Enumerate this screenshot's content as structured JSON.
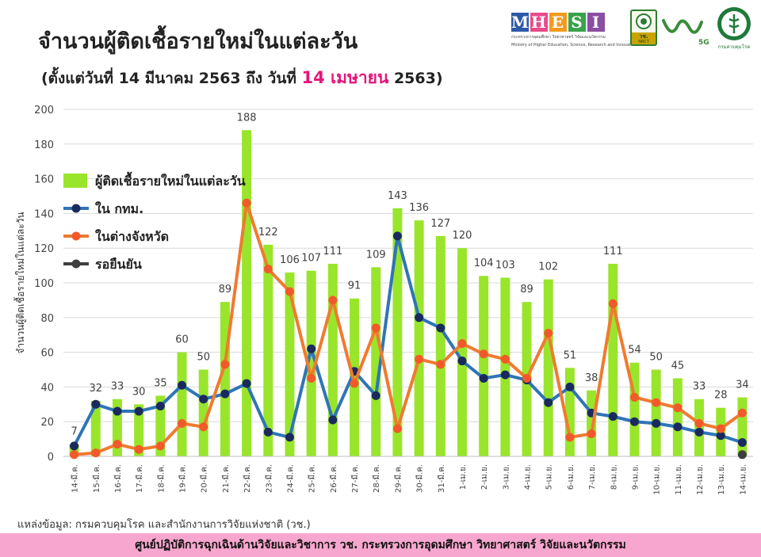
{
  "header": {
    "title": "จำนวนผู้ติดเชื้อรายใหม่ในแต่ละวัน",
    "subtitle_prefix": "(ตั้งแต่วันที่ 14 มีนาคม 2563 ถึง วันที่ ",
    "subtitle_highlight": "14 เมษายน",
    "subtitle_suffix": " 2563)"
  },
  "logos": {
    "mhesi": {
      "letters": [
        "M",
        "H",
        "E",
        "S",
        "I"
      ],
      "letter_colors": [
        "#2d5aa8",
        "#e84b8a",
        "#f29b20",
        "#39a24b",
        "#8a4ea3"
      ],
      "subtext_th": "กระทรวงการอุดมศึกษา วิทยาศาสตร์ วิจัยและนวัตกรรม",
      "subtext_en": "Ministry of Higher Education, Science, Research and Innovation"
    },
    "nrct": {
      "label": "วช.",
      "sublabel": "NRCT"
    },
    "anniversary": {
      "label": "5G"
    },
    "ddc": {
      "label": "กรมควบคุมโรค"
    }
  },
  "chart_data": {
    "type": "bar",
    "ylabel": "จำนวนผู้ติดเชื้อรายใหม่ในแต่ละวัน",
    "ylim": [
      0,
      200
    ],
    "yticks": [
      0,
      20,
      40,
      60,
      80,
      100,
      120,
      140,
      160,
      180,
      200
    ],
    "grid": true,
    "legend_position": "top-left",
    "categories": [
      "14-มี.ค.",
      "15-มี.ค.",
      "16-มี.ค.",
      "17-มี.ค.",
      "18-มี.ค.",
      "19-มี.ค.",
      "20-มี.ค.",
      "21-มี.ค.",
      "22-มี.ค.",
      "23-มี.ค.",
      "24-มี.ค.",
      "25-มี.ค.",
      "26-มี.ค.",
      "27-มี.ค.",
      "28-มี.ค.",
      "29-มี.ค.",
      "30-มี.ค.",
      "31-มี.ค.",
      "1-เม.ย.",
      "2-เม.ย.",
      "3-เม.ย.",
      "4-เม.ย.",
      "5-เม.ย.",
      "6-เม.ย.",
      "7-เม.ย.",
      "8-เม.ย.",
      "9-เม.ย.",
      "10-เม.ย.",
      "11-เม.ย.",
      "12-เม.ย.",
      "13-เม.ย.",
      "14-เม.ย."
    ],
    "series": [
      {
        "name": "ผู้ติดเชื้อรายใหม่ในแต่ละวัน",
        "type": "bar",
        "color": "#99e52b",
        "values": [
          7,
          32,
          33,
          30,
          35,
          60,
          50,
          89,
          188,
          122,
          106,
          107,
          111,
          91,
          109,
          143,
          136,
          127,
          120,
          104,
          103,
          89,
          102,
          51,
          38,
          111,
          54,
          50,
          45,
          33,
          28,
          34
        ]
      },
      {
        "name": "ใน กทม.",
        "type": "line",
        "color": "#2e75b6",
        "marker_color": "#1a2a5e",
        "values": [
          6,
          30,
          26,
          26,
          29,
          41,
          33,
          36,
          42,
          14,
          11,
          62,
          21,
          49,
          35,
          127,
          80,
          74,
          55,
          45,
          47,
          44,
          31,
          40,
          25,
          23,
          20,
          19,
          17,
          14,
          12,
          8
        ]
      },
      {
        "name": "ในต่างจังหวัด",
        "type": "line",
        "color": "#f07a30",
        "marker_color": "#f2592a",
        "values": [
          1,
          2,
          7,
          4,
          6,
          19,
          17,
          53,
          146,
          108,
          95,
          45,
          90,
          42,
          74,
          16,
          56,
          53,
          65,
          59,
          56,
          45,
          71,
          11,
          13,
          88,
          34,
          31,
          28,
          19,
          16,
          25
        ]
      },
      {
        "name": "รอยืนยัน",
        "type": "point",
        "color": "#3f3f3f",
        "values": [
          null,
          null,
          null,
          null,
          null,
          null,
          null,
          null,
          null,
          null,
          null,
          null,
          null,
          null,
          null,
          null,
          null,
          null,
          null,
          null,
          null,
          null,
          null,
          null,
          null,
          null,
          null,
          null,
          null,
          null,
          null,
          1
        ]
      }
    ]
  },
  "footer": {
    "source": "แหล่งข้อมูล: กรมควบคุมโรค และสำนักงานการวิจัยแห่งชาติ (วช.)",
    "banner": "ศูนย์ปฏิบัติการฉุกเฉินด้านวิจัยและวิชาการ   วช.   กระทรวงการอุดมศึกษา วิทยาศาสตร์ วิจัยและนวัตกรรม"
  }
}
